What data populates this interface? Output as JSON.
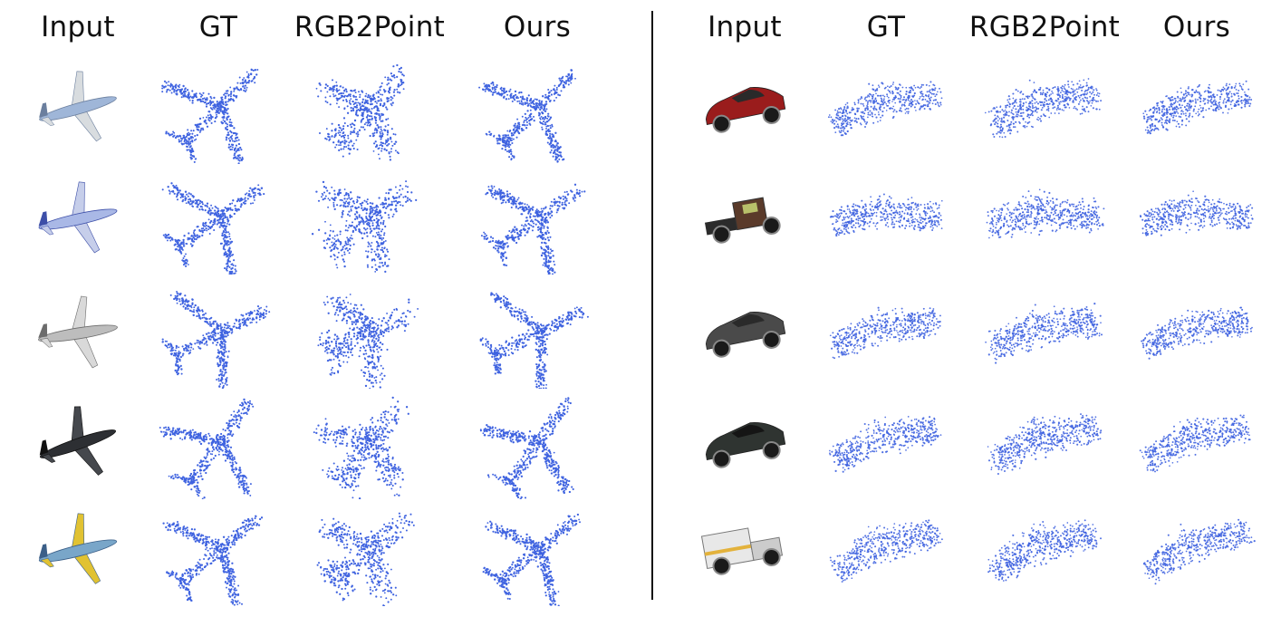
{
  "headers": {
    "left": [
      "Input",
      "GT",
      "RGB2Point",
      "Ours"
    ],
    "right": [
      "Input",
      "GT",
      "RGB2Point",
      "Ours"
    ]
  },
  "colors": {
    "points": "#3f63e0",
    "divider": "#111111",
    "text": "#111111"
  },
  "rows": {
    "left": [
      {
        "input": "airplane-render-silver-blue"
      },
      {
        "input": "airplane-render-side-blue-tail"
      },
      {
        "input": "airplane-render-propeller-fighter"
      },
      {
        "input": "airplane-render-dark-jet"
      },
      {
        "input": "airplane-render-yellow-blue-airliner"
      }
    ],
    "right": [
      {
        "input": "car-render-red-sedan"
      },
      {
        "input": "car-render-pickup-truck"
      },
      {
        "input": "car-render-dark-convertible"
      },
      {
        "input": "car-render-black-sports-car"
      },
      {
        "input": "car-render-ambulance"
      }
    ]
  }
}
